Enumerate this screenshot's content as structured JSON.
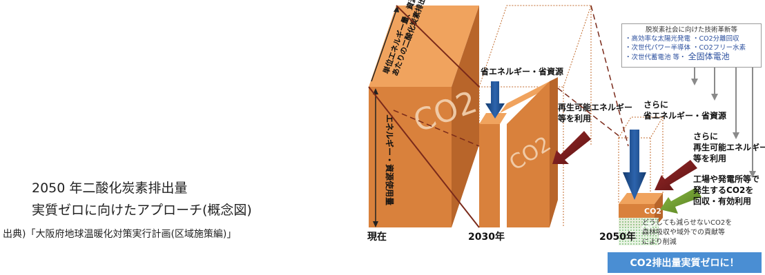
{
  "title": {
    "line1": "2050 年二酸化炭素排出量",
    "line2": "実質ゼロに向けたアプローチ(概念図)"
  },
  "source": "出典)「大阪府地球温暖化対策実行計画(区域施策編)」",
  "diagram": {
    "top_axis_label_1": "単位エネルギー量、資源量",
    "top_axis_label_2": "あたりの二酸化炭素排出量",
    "side_axis_label": "エネルギー・資源使用量",
    "co2": "CO2",
    "year_now": "現在",
    "year_2030": "2030年",
    "year_2050": "2050年",
    "arrow_save": "省エネルギー・省資源",
    "arrow_renew_1": "再生可能エネルギー",
    "arrow_renew_2": "等を利用",
    "arrow_more_save_1": "さらに",
    "arrow_more_save_2": "省エネルギー・省資源",
    "arrow_more_renew_1": "さらに",
    "arrow_more_renew_2": "再生可能エネルギー",
    "arrow_more_renew_3": "等を利用",
    "arrow_capture_1": "工場や発電所等で",
    "arrow_capture_2": "発生するCO2を",
    "arrow_capture_3": "回収・有効利用",
    "note_1": "どうしても減らせないCO2を",
    "note_2": "森林吸収や域外での貢献等",
    "note_3": "により削減"
  },
  "tech_box": {
    "header": "脱炭素社会に向けた技術革新等",
    "line1": "・高効率な太陽光発電 ・CO2分離回収",
    "line2": "・次世代パワー半導体 ・CO2フリー水素",
    "line3_a": "・次世代蓄電池 等・",
    "line3_b": "全固体電池"
  },
  "result_button": "CO2排出量実質ゼロに！",
  "colors": {
    "orange_front": "#d9813c",
    "orange_top": "#f0a35e",
    "orange_side": "#b8652a",
    "blue_arrow": "#1f4e8c",
    "red_arrow": "#7a1f1f",
    "green_arrow": "#6f9e2f",
    "button_blue": "#4a8ed3"
  }
}
